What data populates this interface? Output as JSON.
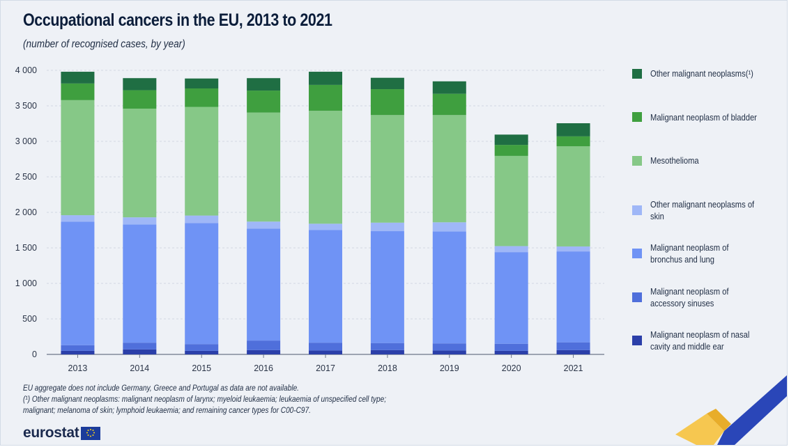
{
  "title": "Occupational cancers in the EU, 2013 to 2021",
  "subtitle": "(number of recognised cases, by year)",
  "notes": [
    "EU aggregate does not include Germany, Greece and Portugal as data are not available.",
    "(¹) Other malignant neoplasms: malignant neoplasm of larynx; myeloid leukaemia; leukaemia of unspecified cell type;",
    "malignant;  melanoma of skin; lymphoid leukaemia; and remaining cancer types for C00-C97."
  ],
  "logo": {
    "text": "eurostat",
    "flag_icon": "eu-flag-icon"
  },
  "colors": {
    "background": "#eef1f6",
    "gridline": "#c9d0db",
    "text": "#1f2d44"
  },
  "chart_data": {
    "type": "bar",
    "stacked": true,
    "categories": [
      "2013",
      "2014",
      "2015",
      "2016",
      "2017",
      "2018",
      "2019",
      "2020",
      "2021"
    ],
    "ylim": [
      0,
      4000
    ],
    "yticks": [
      0,
      500,
      1000,
      1500,
      2000,
      2500,
      3000,
      3500,
      4000
    ],
    "ytick_labels": [
      "0",
      "500",
      "1 000",
      "1 500",
      "2 000",
      "2 500",
      "3 000",
      "3 500",
      "4 000"
    ],
    "xlabel": "",
    "ylabel": "",
    "grid": "horizontal",
    "legend_position": "right",
    "series": [
      {
        "name": "Malignant neoplasm of nasal cavity and middle ear",
        "legend_label": "Malignant neoplasm of nasal\ncavity and middle ear",
        "color": "#2b3fa9",
        "values": [
          50,
          70,
          50,
          60,
          55,
          60,
          55,
          50,
          60
        ]
      },
      {
        "name": "Malignant neoplasm of accessory sinuses",
        "legend_label": "Malignant neoplasm of\naccessory sinuses",
        "color": "#4f6fdb",
        "values": [
          80,
          95,
          95,
          135,
          110,
          100,
          100,
          100,
          110
        ]
      },
      {
        "name": "Malignant neoplasm of bronchus and lung",
        "legend_label": "Malignant neoplasm of\nbronchus and lung",
        "color": "#6f93f5",
        "values": [
          1740,
          1665,
          1705,
          1575,
          1585,
          1575,
          1575,
          1290,
          1280
        ]
      },
      {
        "name": "Other malignant neoplasms of skin",
        "legend_label": "Other malignant neoplasms of skin",
        "color": "#9fb7f7",
        "values": [
          90,
          100,
          105,
          100,
          90,
          120,
          130,
          85,
          70
        ]
      },
      {
        "name": "Mesothelioma",
        "legend_label": "Mesothelioma",
        "color": "#86c887",
        "values": [
          1620,
          1530,
          1530,
          1535,
          1590,
          1515,
          1510,
          1270,
          1410
        ]
      },
      {
        "name": "Malignant neoplasm of bladder",
        "legend_label": "Malignant neoplasm of bladder",
        "color": "#3f9f3f",
        "values": [
          235,
          260,
          260,
          310,
          365,
          365,
          300,
          155,
          140
        ]
      },
      {
        "name": "Other malignant neoplasms(¹)",
        "legend_label": "Other malignant neoplasms(¹)",
        "color": "#1f6e43",
        "values": [
          165,
          170,
          140,
          175,
          185,
          160,
          175,
          145,
          185
        ]
      }
    ]
  }
}
